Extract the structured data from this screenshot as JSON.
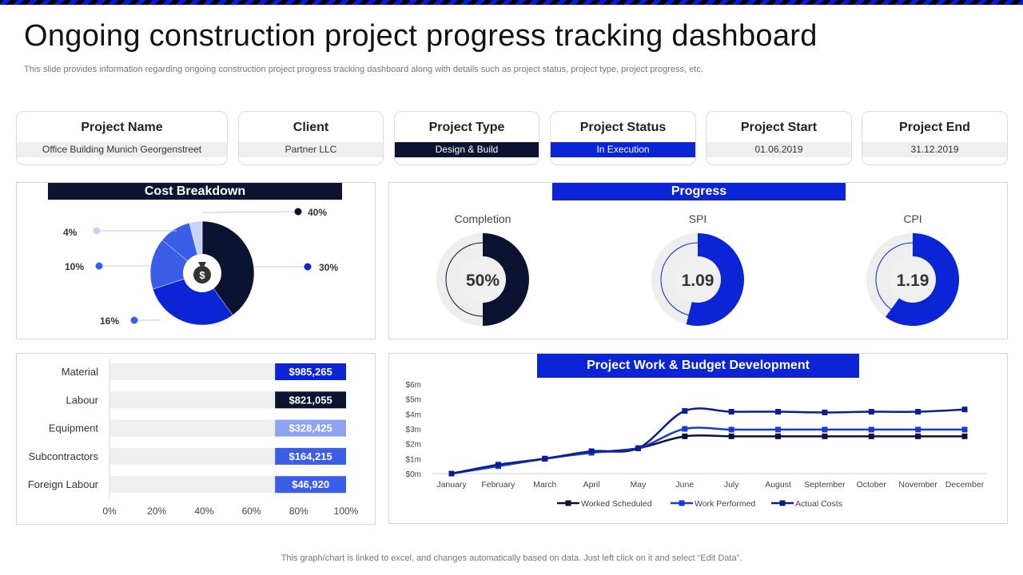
{
  "header": {
    "title": "Ongoing construction project progress tracking dashboard",
    "subtitle": "This slide provides information regarding ongoing construction project progress tracking dashboard along with details such as project status, project type,  project progress, etc."
  },
  "info_cards": [
    {
      "title": "Project Name",
      "value": "Office Building Munich Georgenstreet"
    },
    {
      "title": "Client",
      "value": "Partner LLC"
    },
    {
      "title": "Project Type",
      "value": "Design & Build"
    },
    {
      "title": "Project Status",
      "value": "In Execution"
    },
    {
      "title": "Project Start",
      "value": "01.06.2019"
    },
    {
      "title": "Project End",
      "value": "31.12.2019"
    }
  ],
  "colors": {
    "navy": "#0b1330",
    "blue": "#0a24d6",
    "mid_blue": "#3b5ee8",
    "light_blue": "#8ea4f3",
    "pale_blue": "#c8d3fa",
    "track": "#eeeeee"
  },
  "progress": {
    "banner": "Progress",
    "gauges": [
      {
        "label": "Completion",
        "value_text": "50%",
        "fraction": 0.5,
        "color": "#0b1330"
      },
      {
        "label": "SPI",
        "value_text": "1.09",
        "fraction": 0.54,
        "color": "#0a24d6"
      },
      {
        "label": "CPI",
        "value_text": "1.19",
        "fraction": 0.6,
        "color": "#0a24d6"
      }
    ]
  },
  "footer": "This graph/chart is linked to excel,  and changes automatically based on data. Just left click on it and select “Edit Data”.",
  "chart_data": [
    {
      "type": "pie",
      "title": "Cost Breakdown",
      "center_icon": "money-bag-icon",
      "slices": [
        {
          "label": "40%",
          "value": 40,
          "color": "#0b1330"
        },
        {
          "label": "30%",
          "value": 30,
          "color": "#0a24d6"
        },
        {
          "label": "16%",
          "value": 16,
          "color": "#3b5ee8"
        },
        {
          "label": "10%",
          "value": 10,
          "color": "#3b5ee8"
        },
        {
          "label": "4%",
          "value": 4,
          "color": "#c8d3fa"
        }
      ]
    },
    {
      "type": "bar",
      "orientation": "horizontal",
      "title": "",
      "categories": [
        "Material",
        "Labour",
        "Equipment",
        "Subcontractors",
        "Foreign Labour"
      ],
      "values": [
        985265,
        821055,
        328425,
        164215,
        46920
      ],
      "value_labels": [
        "$985,265",
        "$821,055",
        "$328,425",
        "$164,215",
        "$46,920"
      ],
      "label_colors": [
        "#0a24d6",
        "#0b1330",
        "#8ea4f3",
        "#3b5ee8",
        "#3b5ee8"
      ],
      "xlim": [
        0,
        100
      ],
      "xticks": [
        "0%",
        "20%",
        "40%",
        "60%",
        "80%",
        "100%"
      ]
    },
    {
      "type": "line",
      "title": "Project Work & Budget Development",
      "categories": [
        "January",
        "February",
        "March",
        "April",
        "May",
        "June",
        "July",
        "August",
        "September",
        "October",
        "November",
        "December"
      ],
      "yticks": [
        "$0m",
        "$1m",
        "$2m",
        "$3m",
        "$4m",
        "$5m",
        "$6m"
      ],
      "ylim": [
        0,
        6
      ],
      "series": [
        {
          "name": "Worked Scheduled",
          "color": "#0b1330",
          "values": [
            0,
            0.5,
            1.0,
            1.4,
            1.7,
            2.5,
            2.5,
            2.5,
            2.5,
            2.5,
            2.5,
            2.5
          ]
        },
        {
          "name": "Work Performed",
          "color": "#1a3ad8",
          "values": [
            0,
            0.5,
            1.0,
            1.4,
            1.7,
            3.0,
            2.95,
            2.95,
            2.95,
            2.95,
            2.95,
            2.95
          ]
        },
        {
          "name": "Actual Costs",
          "color": "#0a1f8f",
          "values": [
            0,
            0.6,
            1.0,
            1.5,
            1.7,
            4.2,
            4.15,
            4.15,
            4.1,
            4.15,
            4.15,
            4.3
          ]
        }
      ]
    }
  ]
}
